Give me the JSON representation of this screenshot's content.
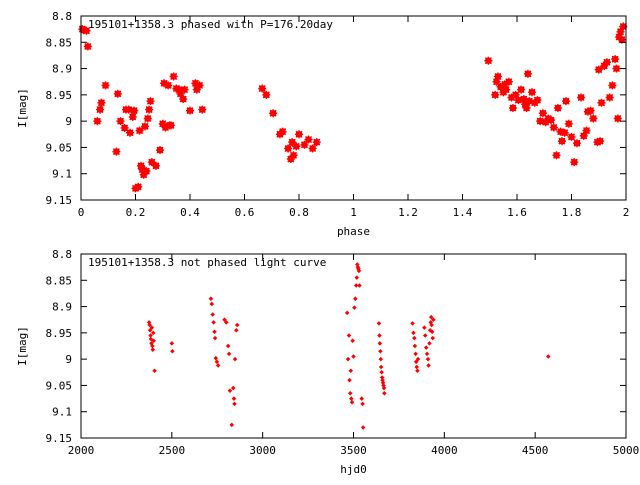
{
  "chart_data": [
    {
      "type": "scatter",
      "title": "195101+1358.3 phased with P=176.20day",
      "xlabel": "phase",
      "ylabel": "I[mag]",
      "xlim": [
        0,
        2
      ],
      "ylim": [
        9.15,
        8.8
      ],
      "y_reversed": true,
      "xticks": [
        "0",
        "0.2",
        "0.4",
        "0.6",
        "0.8",
        "1",
        "1.2",
        "1.4",
        "1.6",
        "1.8",
        "2"
      ],
      "yticks": [
        "8.8",
        "8.85",
        "8.9",
        "8.95",
        "9",
        "9.05",
        "9.1",
        "9.15"
      ],
      "grid": false,
      "legend": "none",
      "marker": "star",
      "color": "#ff0000",
      "series": [
        {
          "name": "",
          "points": [
            [
              0.005,
              8.825
            ],
            [
              0.01,
              8.827
            ],
            [
              0.02,
              8.828
            ],
            [
              0.025,
              8.858
            ],
            [
              0.06,
              9.0
            ],
            [
              0.07,
              8.978
            ],
            [
              0.075,
              8.965
            ],
            [
              0.09,
              8.932
            ],
            [
              0.13,
              9.058
            ],
            [
              0.135,
              8.948
            ],
            [
              0.145,
              9.0
            ],
            [
              0.16,
              9.013
            ],
            [
              0.165,
              8.978
            ],
            [
              0.175,
              8.978
            ],
            [
              0.18,
              9.022
            ],
            [
              0.19,
              8.992
            ],
            [
              0.195,
              8.98
            ],
            [
              0.2,
              9.128
            ],
            [
              0.21,
              9.125
            ],
            [
              0.215,
              9.018
            ],
            [
              0.22,
              9.085
            ],
            [
              0.225,
              9.092
            ],
            [
              0.23,
              9.102
            ],
            [
              0.235,
              9.01
            ],
            [
              0.24,
              9.095
            ],
            [
              0.245,
              8.995
            ],
            [
              0.25,
              8.978
            ],
            [
              0.255,
              8.962
            ],
            [
              0.26,
              9.078
            ],
            [
              0.275,
              9.085
            ],
            [
              0.29,
              9.055
            ],
            [
              0.3,
              9.005
            ],
            [
              0.305,
              8.928
            ],
            [
              0.31,
              9.012
            ],
            [
              0.32,
              8.932
            ],
            [
              0.325,
              9.008
            ],
            [
              0.33,
              9.008
            ],
            [
              0.34,
              8.915
            ],
            [
              0.35,
              8.938
            ],
            [
              0.36,
              8.94
            ],
            [
              0.365,
              8.948
            ],
            [
              0.375,
              8.958
            ],
            [
              0.38,
              8.94
            ],
            [
              0.4,
              8.98
            ],
            [
              0.42,
              8.928
            ],
            [
              0.425,
              8.94
            ],
            [
              0.435,
              8.932
            ],
            [
              0.445,
              8.978
            ],
            [
              0.665,
              8.938
            ],
            [
              0.68,
              8.95
            ],
            [
              0.705,
              8.985
            ],
            [
              0.73,
              9.025
            ],
            [
              0.74,
              9.02
            ],
            [
              0.76,
              9.052
            ],
            [
              0.77,
              9.072
            ],
            [
              0.775,
              9.04
            ],
            [
              0.78,
              9.065
            ],
            [
              0.79,
              9.048
            ],
            [
              0.8,
              9.025
            ],
            [
              0.82,
              9.045
            ],
            [
              0.835,
              9.035
            ],
            [
              0.85,
              9.052
            ],
            [
              0.865,
              9.04
            ],
            [
              1.495,
              8.885
            ],
            [
              1.52,
              8.95
            ],
            [
              1.525,
              8.925
            ],
            [
              1.53,
              8.915
            ],
            [
              1.54,
              8.935
            ],
            [
              1.55,
              8.945
            ],
            [
              1.555,
              8.93
            ],
            [
              1.56,
              8.94
            ],
            [
              1.57,
              8.925
            ],
            [
              1.58,
              8.955
            ],
            [
              1.585,
              8.975
            ],
            [
              1.595,
              8.95
            ],
            [
              1.605,
              8.96
            ],
            [
              1.615,
              8.94
            ],
            [
              1.625,
              8.958
            ],
            [
              1.63,
              8.968
            ],
            [
              1.635,
              8.975
            ],
            [
              1.64,
              8.91
            ],
            [
              1.645,
              8.962
            ],
            [
              1.655,
              8.945
            ],
            [
              1.665,
              8.965
            ],
            [
              1.675,
              8.96
            ],
            [
              1.685,
              9.0
            ],
            [
              1.695,
              8.985
            ],
            [
              1.705,
              9.002
            ],
            [
              1.715,
              8.995
            ],
            [
              1.725,
              8.998
            ],
            [
              1.735,
              9.012
            ],
            [
              1.745,
              9.065
            ],
            [
              1.75,
              8.975
            ],
            [
              1.76,
              9.02
            ],
            [
              1.765,
              9.038
            ],
            [
              1.775,
              9.022
            ],
            [
              1.78,
              8.962
            ],
            [
              1.79,
              9.005
            ],
            [
              1.8,
              9.03
            ],
            [
              1.81,
              9.078
            ],
            [
              1.82,
              9.042
            ],
            [
              1.835,
              8.955
            ],
            [
              1.845,
              9.028
            ],
            [
              1.855,
              9.018
            ],
            [
              1.86,
              8.982
            ],
            [
              1.87,
              8.98
            ],
            [
              1.88,
              8.995
            ],
            [
              1.895,
              9.04
            ],
            [
              1.9,
              8.902
            ],
            [
              1.905,
              9.038
            ],
            [
              1.91,
              8.965
            ],
            [
              1.92,
              8.895
            ],
            [
              1.93,
              8.888
            ],
            [
              1.94,
              8.955
            ],
            [
              1.95,
              8.932
            ],
            [
              1.96,
              8.882
            ],
            [
              1.965,
              8.9
            ],
            [
              1.97,
              8.995
            ],
            [
              1.975,
              8.84
            ],
            [
              1.98,
              8.83
            ],
            [
              1.985,
              8.845
            ],
            [
              1.99,
              8.82
            ]
          ]
        }
      ]
    },
    {
      "type": "scatter",
      "title": "195101+1358.3 not phased light curve",
      "xlabel": "hjd0",
      "ylabel": "I[mag]",
      "xlim": [
        2000,
        5000
      ],
      "ylim": [
        9.15,
        8.8
      ],
      "y_reversed": true,
      "xticks": [
        "2000",
        "2500",
        "3000",
        "3500",
        "4000",
        "4500",
        "5000"
      ],
      "yticks": [
        "8.8",
        "8.85",
        "8.9",
        "8.95",
        "9",
        "9.05",
        "9.1",
        "9.15"
      ],
      "grid": false,
      "legend": "none",
      "marker": "dot",
      "color": "#ff0000",
      "series": [
        {
          "name": "",
          "points": [
            [
              2375,
              8.93
            ],
            [
              2378,
              8.935
            ],
            [
              2380,
              8.945
            ],
            [
              2383,
              8.955
            ],
            [
              2385,
              8.962
            ],
            [
              2388,
              8.97
            ],
            [
              2390,
              8.94
            ],
            [
              2393,
              8.975
            ],
            [
              2395,
              8.982
            ],
            [
              2398,
              8.95
            ],
            [
              2400,
              8.965
            ],
            [
              2405,
              9.022
            ],
            [
              2500,
              8.97
            ],
            [
              2503,
              8.985
            ],
            [
              2715,
              8.885
            ],
            [
              2720,
              8.895
            ],
            [
              2725,
              8.915
            ],
            [
              2730,
              8.93
            ],
            [
              2735,
              8.948
            ],
            [
              2738,
              8.96
            ],
            [
              2742,
              8.998
            ],
            [
              2748,
              9.005
            ],
            [
              2755,
              9.012
            ],
            [
              2790,
              8.925
            ],
            [
              2800,
              8.93
            ],
            [
              2810,
              8.975
            ],
            [
              2815,
              8.99
            ],
            [
              2820,
              9.06
            ],
            [
              2830,
              9.125
            ],
            [
              2838,
              9.055
            ],
            [
              2842,
              9.075
            ],
            [
              2845,
              9.085
            ],
            [
              2848,
              9.0
            ],
            [
              2855,
              8.945
            ],
            [
              2860,
              8.935
            ],
            [
              3465,
              8.912
            ],
            [
              3470,
              9.0
            ],
            [
              3475,
              8.955
            ],
            [
              3478,
              9.04
            ],
            [
              3482,
              9.065
            ],
            [
              3485,
              9.022
            ],
            [
              3488,
              9.075
            ],
            [
              3492,
              9.082
            ],
            [
              3495,
              8.965
            ],
            [
              3500,
              8.995
            ],
            [
              3505,
              8.902
            ],
            [
              3510,
              8.885
            ],
            [
              3515,
              8.86
            ],
            [
              3518,
              8.845
            ],
            [
              3521,
              8.82
            ],
            [
              3524,
              8.825
            ],
            [
              3527,
              8.828
            ],
            [
              3530,
              8.832
            ],
            [
              3533,
              8.86
            ],
            [
              3545,
              9.075
            ],
            [
              3550,
              9.085
            ],
            [
              3553,
              9.13
            ],
            [
              3640,
              8.932
            ],
            [
              3643,
              8.955
            ],
            [
              3645,
              8.97
            ],
            [
              3648,
              8.985
            ],
            [
              3650,
              9.0
            ],
            [
              3652,
              9.015
            ],
            [
              3655,
              9.025
            ],
            [
              3658,
              9.035
            ],
            [
              3660,
              9.04
            ],
            [
              3663,
              9.045
            ],
            [
              3665,
              9.05
            ],
            [
              3668,
              9.055
            ],
            [
              3670,
              9.065
            ],
            [
              3825,
              8.932
            ],
            [
              3830,
              8.95
            ],
            [
              3835,
              8.96
            ],
            [
              3838,
              8.975
            ],
            [
              3842,
              8.99
            ],
            [
              3845,
              9.005
            ],
            [
              3848,
              9.015
            ],
            [
              3852,
              9.022
            ],
            [
              3855,
              9.0
            ],
            [
              3890,
              8.94
            ],
            [
              3895,
              8.955
            ],
            [
              3900,
              8.978
            ],
            [
              3905,
              8.99
            ],
            [
              3910,
              9.0
            ],
            [
              3913,
              9.012
            ],
            [
              3918,
              8.97
            ],
            [
              3922,
              8.945
            ],
            [
              3925,
              8.93
            ],
            [
              3928,
              8.92
            ],
            [
              3930,
              8.935
            ],
            [
              3933,
              8.948
            ],
            [
              3936,
              8.96
            ],
            [
              3940,
              8.925
            ],
            [
              4572,
              8.995
            ]
          ]
        }
      ]
    }
  ]
}
